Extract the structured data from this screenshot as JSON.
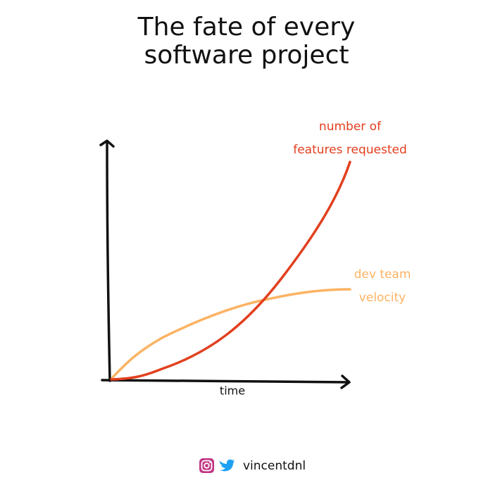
{
  "title": {
    "lines": [
      "The fate of every",
      "software project"
    ]
  },
  "curves": [
    {
      "label_lines": [
        "number of",
        "features requested"
      ]
    },
    {
      "label_lines": [
        "dev team",
        "velocity"
      ]
    }
  ],
  "x_axis_label": "time",
  "footer": {
    "handle": "vincentdnl"
  }
}
